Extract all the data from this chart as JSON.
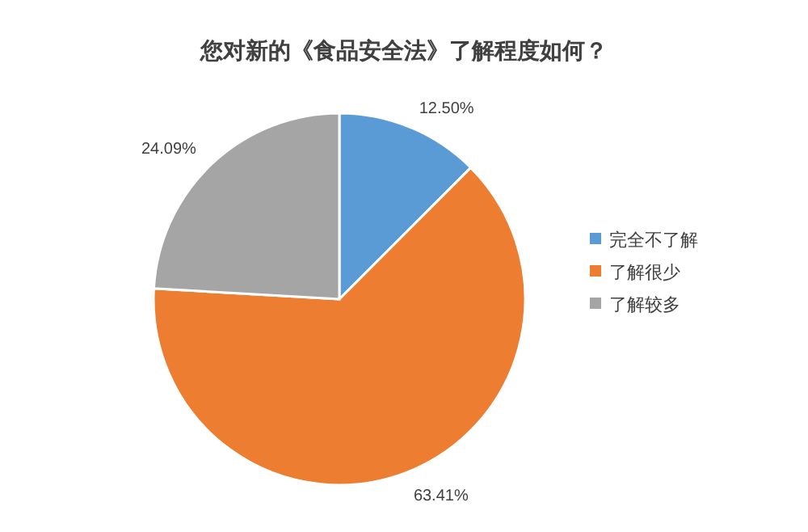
{
  "chart_data": {
    "type": "pie",
    "title": "您对新的《食品安全法》了解程度如何？",
    "categories": [
      "完全不了解",
      "了解很少",
      "了解较多"
    ],
    "values": [
      12.5,
      63.41,
      24.09
    ],
    "colors": [
      "#5b9bd5",
      "#ed7d31",
      "#a5a5a5"
    ],
    "value_labels": [
      "12.50%",
      "63.41%",
      "24.09%"
    ],
    "legend": "right"
  }
}
